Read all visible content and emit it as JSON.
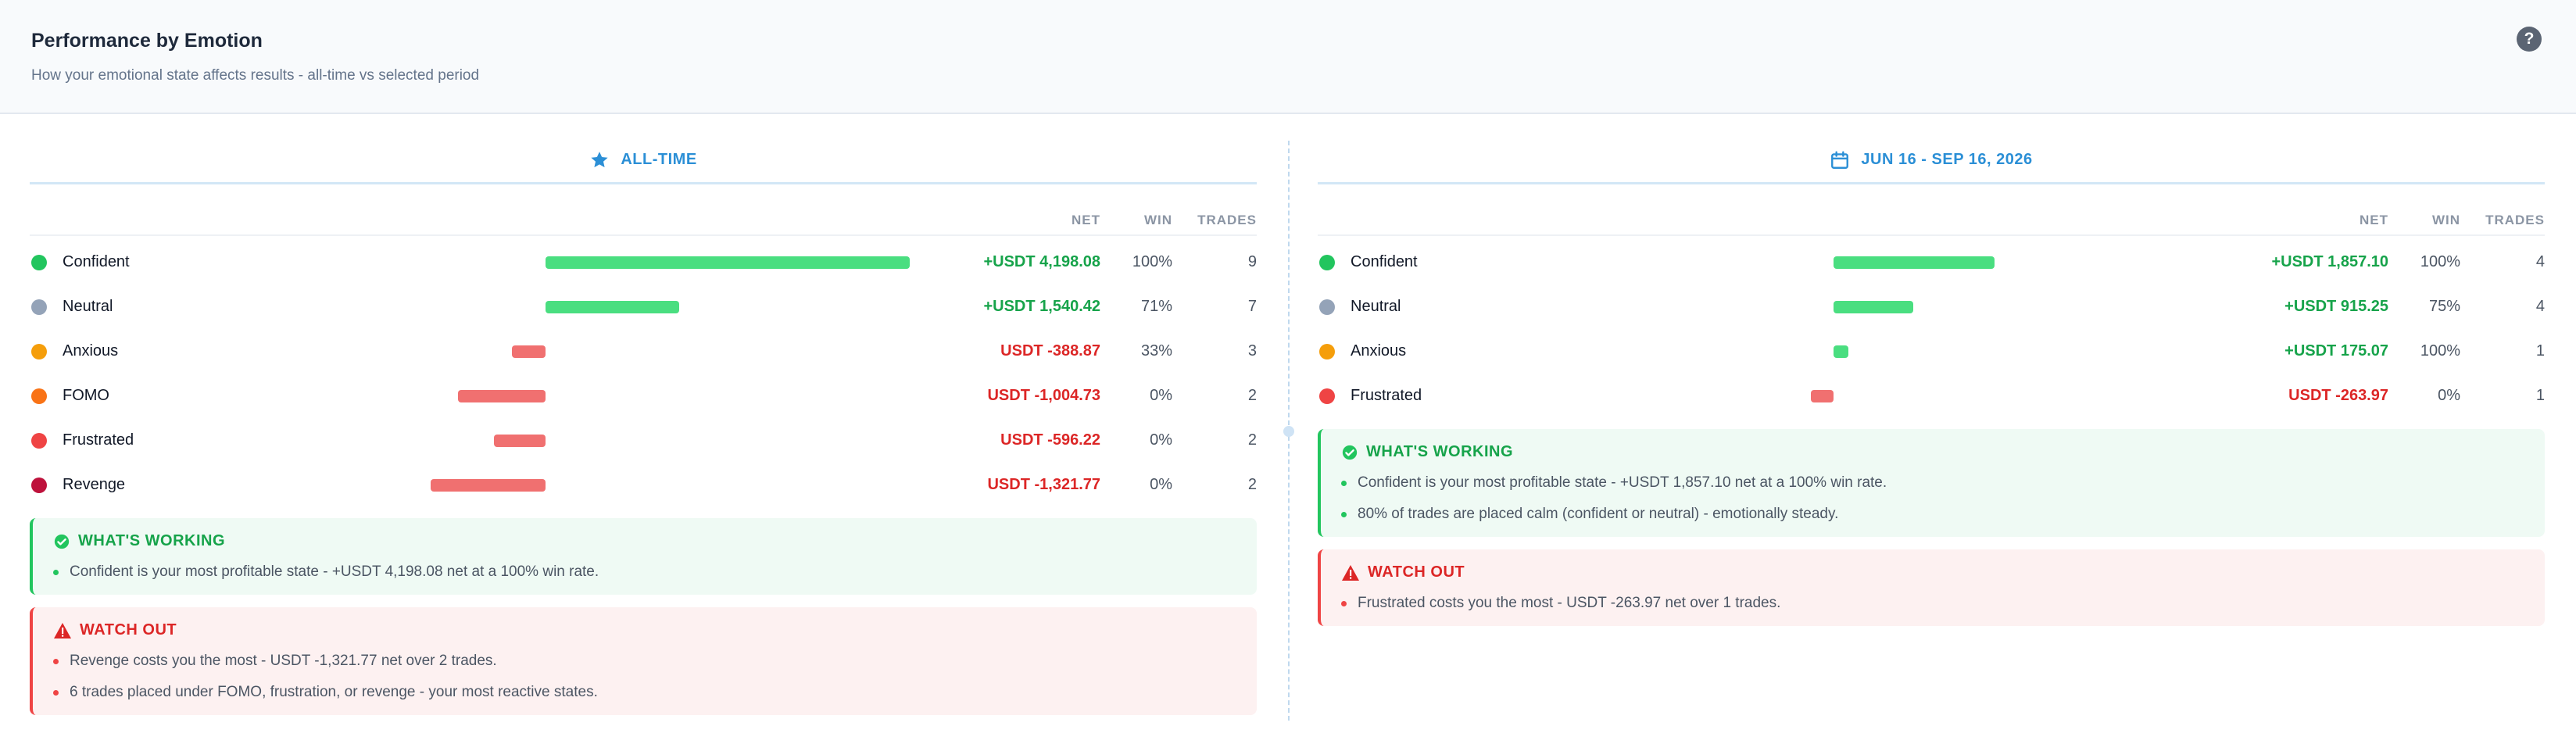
{
  "header": {
    "title": "Performance by Emotion",
    "subtitle": "How your emotional state affects results - all-time vs selected period",
    "help_label": "?"
  },
  "columns": {
    "net": "NET",
    "win": "WIN",
    "trades": "TRADES"
  },
  "colors": {
    "positive": "#16a34a",
    "negative": "#dc2626",
    "bar_positive": "#4ade80",
    "bar_negative": "#f07070",
    "accent": "#2b8fd6"
  },
  "emotions": {
    "Confident": "#22c55e",
    "Neutral": "#94a3b8",
    "Anxious": "#f59e0b",
    "FOMO": "#f97316",
    "Frustrated": "#ef4444",
    "Revenge": "#be123c"
  },
  "panels": [
    {
      "id": "all-time",
      "icon": "star-icon",
      "label": "ALL-TIME",
      "rows": [
        {
          "emotion": "Confident",
          "net": "+USDT 4,198.08",
          "net_value": 4198.08,
          "win": "100%",
          "trades": "9"
        },
        {
          "emotion": "Neutral",
          "net": "+USDT 1,540.42",
          "net_value": 1540.42,
          "win": "71%",
          "trades": "7"
        },
        {
          "emotion": "Anxious",
          "net": "USDT -388.87",
          "net_value": -388.87,
          "win": "33%",
          "trades": "3"
        },
        {
          "emotion": "FOMO",
          "net": "USDT -1,004.73",
          "net_value": -1004.73,
          "win": "0%",
          "trades": "2"
        },
        {
          "emotion": "Frustrated",
          "net": "USDT -596.22",
          "net_value": -596.22,
          "win": "0%",
          "trades": "2"
        },
        {
          "emotion": "Revenge",
          "net": "USDT -1,321.77",
          "net_value": -1321.77,
          "win": "0%",
          "trades": "2"
        }
      ],
      "working": {
        "title": "WHAT'S WORKING",
        "items": [
          "Confident is your most profitable state - +USDT 4,198.08 net at a 100% win rate."
        ]
      },
      "watch": {
        "title": "WATCH OUT",
        "items": [
          "Revenge costs you the most - USDT -1,321.77 net over 2 trades.",
          "6 trades placed under FOMO, frustration, or revenge - your most reactive states."
        ]
      }
    },
    {
      "id": "period",
      "icon": "calendar-icon",
      "label": "JUN 16 - SEP 16, 2026",
      "rows": [
        {
          "emotion": "Confident",
          "net": "+USDT 1,857.10",
          "net_value": 1857.1,
          "win": "100%",
          "trades": "4"
        },
        {
          "emotion": "Neutral",
          "net": "+USDT 915.25",
          "net_value": 915.25,
          "win": "75%",
          "trades": "4"
        },
        {
          "emotion": "Anxious",
          "net": "+USDT 175.07",
          "net_value": 175.07,
          "win": "100%",
          "trades": "1"
        },
        {
          "emotion": "Frustrated",
          "net": "USDT -263.97",
          "net_value": -263.97,
          "win": "0%",
          "trades": "1"
        }
      ],
      "working": {
        "title": "WHAT'S WORKING",
        "items": [
          "Confident is your most profitable state - +USDT 1,857.10 net at a 100% win rate.",
          "80% of trades are placed calm (confident or neutral) - emotionally steady."
        ]
      },
      "watch": {
        "title": "WATCH OUT",
        "items": [
          "Frustrated costs you the most - USDT -263.97 net over 1 trades."
        ]
      }
    }
  ]
}
